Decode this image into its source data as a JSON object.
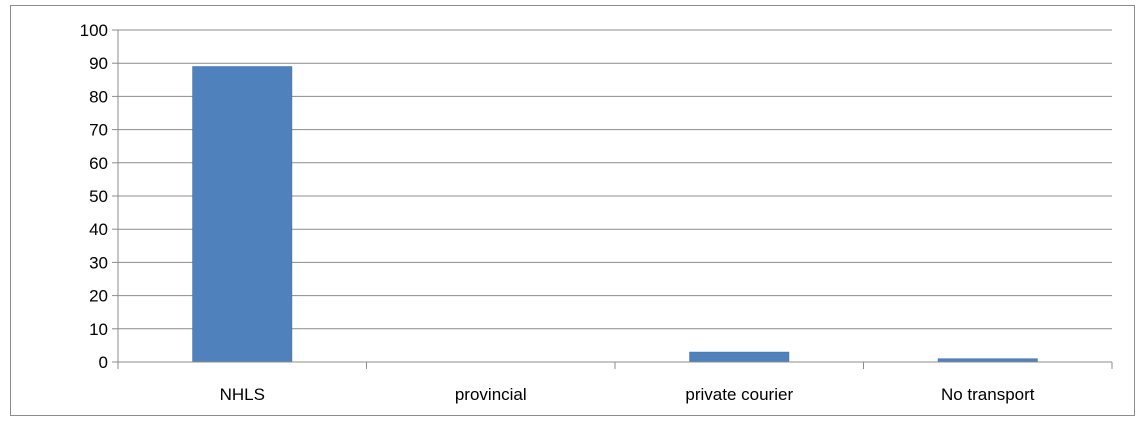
{
  "chart_data": {
    "type": "bar",
    "title": "",
    "xlabel": "",
    "ylabel": "",
    "categories": [
      "NHLS",
      "provincial",
      "private courier",
      "No transport"
    ],
    "values": [
      89,
      0,
      3,
      1
    ],
    "ylim": [
      0,
      100
    ],
    "yticks": [
      "0",
      "10",
      "20",
      "30",
      "40",
      "50",
      "60",
      "70",
      "80",
      "90",
      "100"
    ],
    "grid": true,
    "legend": "none",
    "colors": {
      "bar": "#4f81bd",
      "bar_edge": "#3a6aa5",
      "grid": "#8c8c8c",
      "axis": "#8c8c8c",
      "frame": "#8c8c8c"
    }
  }
}
